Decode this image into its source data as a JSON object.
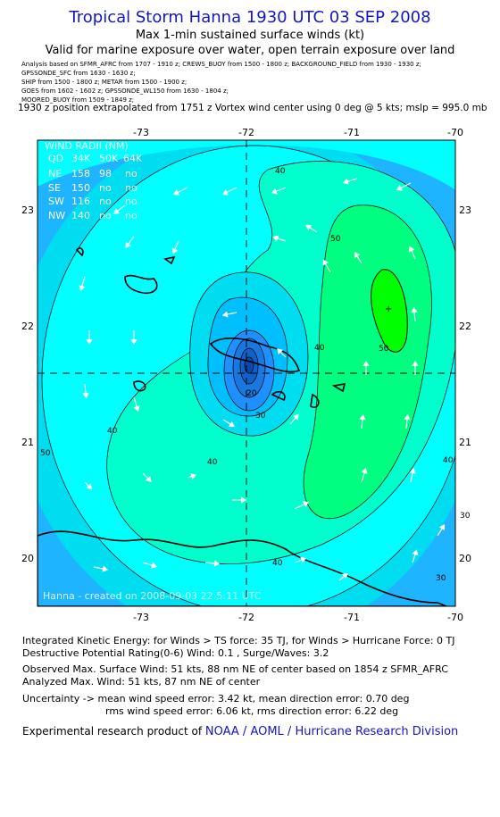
{
  "header": {
    "title": "Tropical Storm Hanna 1930 UTC 03 SEP 2008",
    "subtitle1": "Max 1-min sustained surface winds (kt)",
    "subtitle2": "Valid for marine exposure over water, open terrain exposure over land"
  },
  "analysis_sources": [
    "Analysis based on  SFMR_AFRC from 1707 - 1910 z;  CREWS_BUOY from 1500 - 1800 z;  BACKGROUND_FIELD from 1930 - 1930 z;",
    "GPSSONDE_SFC from 1630 - 1630 z;",
    "SHIP from 1500 - 1800 z;   METAR from 1500 - 1900 z;",
    "GOES from 1602 - 1602 z;   GPSSONDE_WL150 from 1630 - 1804 z;",
    "MOORED_BUOY from 1509 - 1849 z;"
  ],
  "position_line": "1930 z position extrapolated from 1751 z Vortex wind center using 0 deg @ 5 kts; mslp = 995.0 mb",
  "map": {
    "lon_ticks": [
      "-73",
      "-72",
      "-71",
      "-70"
    ],
    "lat_ticks": [
      "23",
      "22",
      "21",
      "20"
    ],
    "contour_labels": [
      "40",
      "40",
      "40",
      "40",
      "40",
      "40",
      "50",
      "50",
      "50",
      "30",
      "30",
      "20",
      "30"
    ],
    "center": {
      "lon": -72.0,
      "lat": 21.6
    },
    "max_wind_marker": {
      "lon": -70.6,
      "lat": 22.15
    },
    "watermark": "Hanna  -  created on 2008-09-03 22:5:11 UTC",
    "colors": {
      "ocean": "#00ffff",
      "c30": "#00dcf0",
      "c20": "#00bfff",
      "c10": "#1e90ff",
      "c40": "#00ffcc",
      "c50": "#00ff80",
      "c60": "#00ff00"
    }
  },
  "wind_radii": {
    "title": "WIND RADII (NM)",
    "columns": [
      "QD",
      "34K",
      "50K",
      "64K"
    ],
    "rows": [
      [
        "NE",
        "158",
        "98",
        "no"
      ],
      [
        "SE",
        "150",
        "no",
        "no"
      ],
      [
        "SW",
        "116",
        "no",
        "no"
      ],
      [
        "NW",
        "140",
        "no",
        "no"
      ]
    ]
  },
  "stats": {
    "ike": "Integrated Kinetic Energy:  for Winds > TS force: 35 TJ,  for Winds > Hurricane Force: 0 TJ",
    "dpr": "Destructive Potential Rating(0-6)   Wind: 0.1 , Surge/Waves: 3.2",
    "observed": "Observed Max. Surface Wind: 51 kts, 88 nm NE of center based on 1854 z SFMR_AFRC",
    "analyzed": "Analyzed Max. Wind: 51 kts, 87 nm NE of center",
    "uncert1": "Uncertainty -> mean wind speed error: 3.42 kt,   mean direction error: 0.70 deg",
    "uncert2": "rms wind speed error: 6.06 kt,   rms direction error: 6.22 deg",
    "credit_prefix": "Experimental research product of ",
    "credit_link": "NOAA / AOML / Hurricane Research Division"
  }
}
